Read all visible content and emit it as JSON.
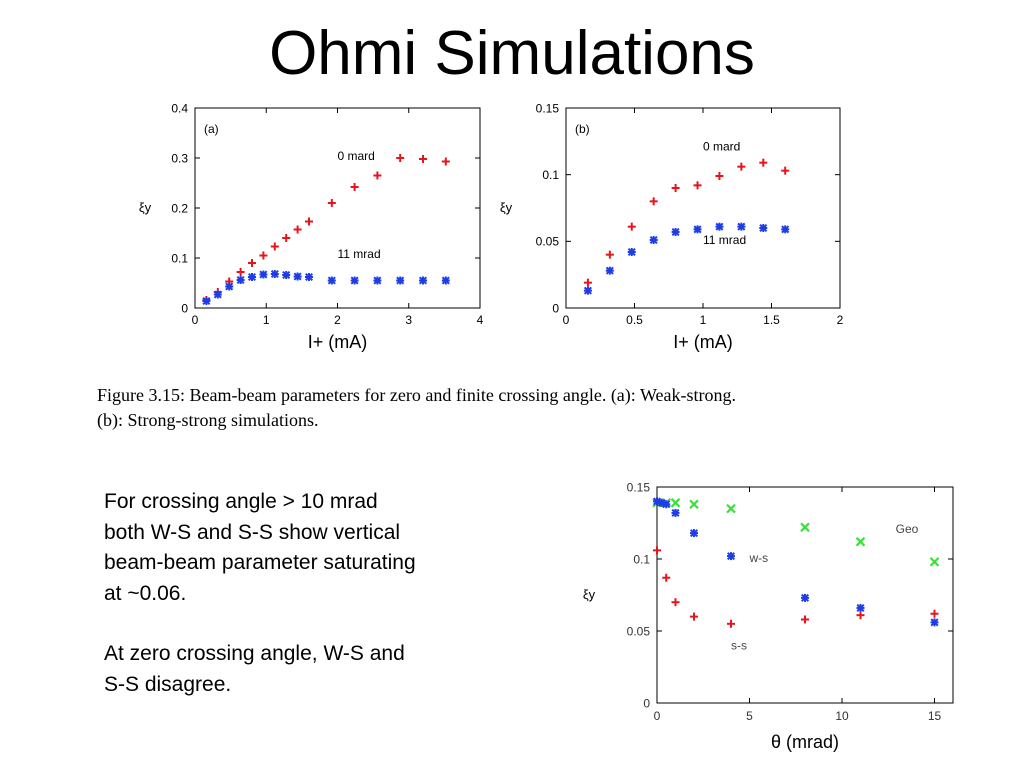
{
  "title": "Ohmi Simulations",
  "caption": {
    "line1": "Figure 3.15:  Beam-beam parameters for zero and finite crossing angle.  (a):  Weak-strong.",
    "line2": "(b):  Strong-strong simulations."
  },
  "notes": {
    "p1": [
      "For crossing angle > 10 mrad",
      "both W-S and S-S show vertical",
      "beam-beam parameter saturating",
      "at ~0.06."
    ],
    "p2": [
      "At zero crossing angle, W-S and",
      "S-S disagree."
    ]
  },
  "colors": {
    "red": "#e8141c",
    "blue": "#1e3ce8",
    "green": "#3ae03a"
  },
  "chart_data": [
    {
      "type": "scatter",
      "panel_label": "(a)",
      "xlabel": "I+ (mA)",
      "ylabel": "ξy",
      "xlim": [
        0,
        4
      ],
      "ylim": [
        0,
        0.4
      ],
      "xticks": [
        0,
        1,
        2,
        3,
        4
      ],
      "xtick_labels": [
        "0",
        "1",
        "2",
        "3",
        "4"
      ],
      "yticks": [
        0,
        0.1,
        0.2,
        0.3,
        0.4
      ],
      "ytick_labels": [
        "0",
        "0.1",
        "0.2",
        "0.3",
        "0.4"
      ],
      "series": [
        {
          "name": "0 mard",
          "color": "#e8141c",
          "marker": "plus",
          "label_at": [
            2.0,
            0.296
          ],
          "x": [
            0.16,
            0.32,
            0.48,
            0.64,
            0.8,
            0.96,
            1.12,
            1.28,
            1.44,
            1.6,
            1.92,
            2.24,
            2.56,
            2.88,
            3.2,
            3.52
          ],
          "y": [
            0.016,
            0.032,
            0.053,
            0.072,
            0.09,
            0.105,
            0.123,
            0.14,
            0.157,
            0.173,
            0.21,
            0.242,
            0.265,
            0.3,
            0.298,
            0.293
          ]
        },
        {
          "name": "11 mrad",
          "color": "#1e3ce8",
          "marker": "star",
          "label_at": [
            2.0,
            0.1
          ],
          "x": [
            0.16,
            0.32,
            0.48,
            0.64,
            0.8,
            0.96,
            1.12,
            1.28,
            1.44,
            1.6,
            1.92,
            2.24,
            2.56,
            2.88,
            3.2,
            3.52
          ],
          "y": [
            0.014,
            0.027,
            0.043,
            0.056,
            0.062,
            0.067,
            0.068,
            0.066,
            0.063,
            0.062,
            0.055,
            0.055,
            0.055,
            0.055,
            0.055,
            0.055
          ]
        }
      ]
    },
    {
      "type": "scatter",
      "panel_label": "(b)",
      "xlabel": "I+ (mA)",
      "ylabel": "ξy",
      "xlim": [
        0,
        2
      ],
      "ylim": [
        0,
        0.15
      ],
      "xticks": [
        0,
        0.5,
        1,
        1.5,
        2
      ],
      "xtick_labels": [
        "0",
        "0.5",
        "1",
        "1.5",
        "2"
      ],
      "yticks": [
        0,
        0.05,
        0.1,
        0.15
      ],
      "ytick_labels": [
        "0",
        "0.05",
        "0.1",
        "0.15"
      ],
      "series": [
        {
          "name": "0 mard",
          "color": "#e8141c",
          "marker": "plus",
          "label_at": [
            1.0,
            0.118
          ],
          "x": [
            0.16,
            0.32,
            0.48,
            0.64,
            0.8,
            0.96,
            1.12,
            1.28,
            1.44,
            1.6
          ],
          "y": [
            0.019,
            0.04,
            0.061,
            0.08,
            0.09,
            0.092,
            0.099,
            0.106,
            0.109,
            0.103
          ]
        },
        {
          "name": "11 mrad",
          "color": "#1e3ce8",
          "marker": "star",
          "label_at": [
            1.0,
            0.048
          ],
          "x": [
            0.16,
            0.32,
            0.48,
            0.64,
            0.8,
            0.96,
            1.12,
            1.28,
            1.44,
            1.6
          ],
          "y": [
            0.013,
            0.028,
            0.042,
            0.051,
            0.057,
            0.059,
            0.061,
            0.061,
            0.06,
            0.059
          ]
        }
      ]
    },
    {
      "type": "scatter",
      "xlabel": "θ (mrad)",
      "ylabel": "ξy",
      "xlim": [
        0,
        16
      ],
      "ylim": [
        0,
        0.15
      ],
      "xticks": [
        0,
        5,
        10,
        15
      ],
      "xtick_labels": [
        "0",
        "5",
        "10",
        "15"
      ],
      "yticks": [
        0,
        0.05,
        0.1,
        0.15
      ],
      "ytick_labels": [
        "0",
        "0.05",
        "0.1",
        "0.15"
      ],
      "series": [
        {
          "name": "Geo",
          "color": "#3ae03a",
          "marker": "x",
          "label_at": [
            12.9,
            0.118
          ],
          "x": [
            0,
            0.5,
            1,
            2,
            4,
            8,
            11,
            15
          ],
          "y": [
            0.139,
            0.139,
            0.139,
            0.138,
            0.135,
            0.122,
            0.112,
            0.098
          ]
        },
        {
          "name": "w-s",
          "color": "#1e3ce8",
          "marker": "star",
          "label_at": [
            5.0,
            0.098
          ],
          "x": [
            0,
            0.25,
            0.5,
            1,
            2,
            4,
            8,
            11,
            15
          ],
          "y": [
            0.14,
            0.139,
            0.138,
            0.132,
            0.118,
            0.102,
            0.073,
            0.066,
            0.056
          ]
        },
        {
          "name": "s-s",
          "color": "#e8141c",
          "marker": "plus",
          "label_at": [
            4.0,
            0.037
          ],
          "x": [
            0,
            0.5,
            1,
            2,
            4,
            8,
            11,
            15
          ],
          "y": [
            0.106,
            0.087,
            0.07,
            0.06,
            0.055,
            0.058,
            0.061,
            0.062
          ]
        }
      ]
    }
  ]
}
